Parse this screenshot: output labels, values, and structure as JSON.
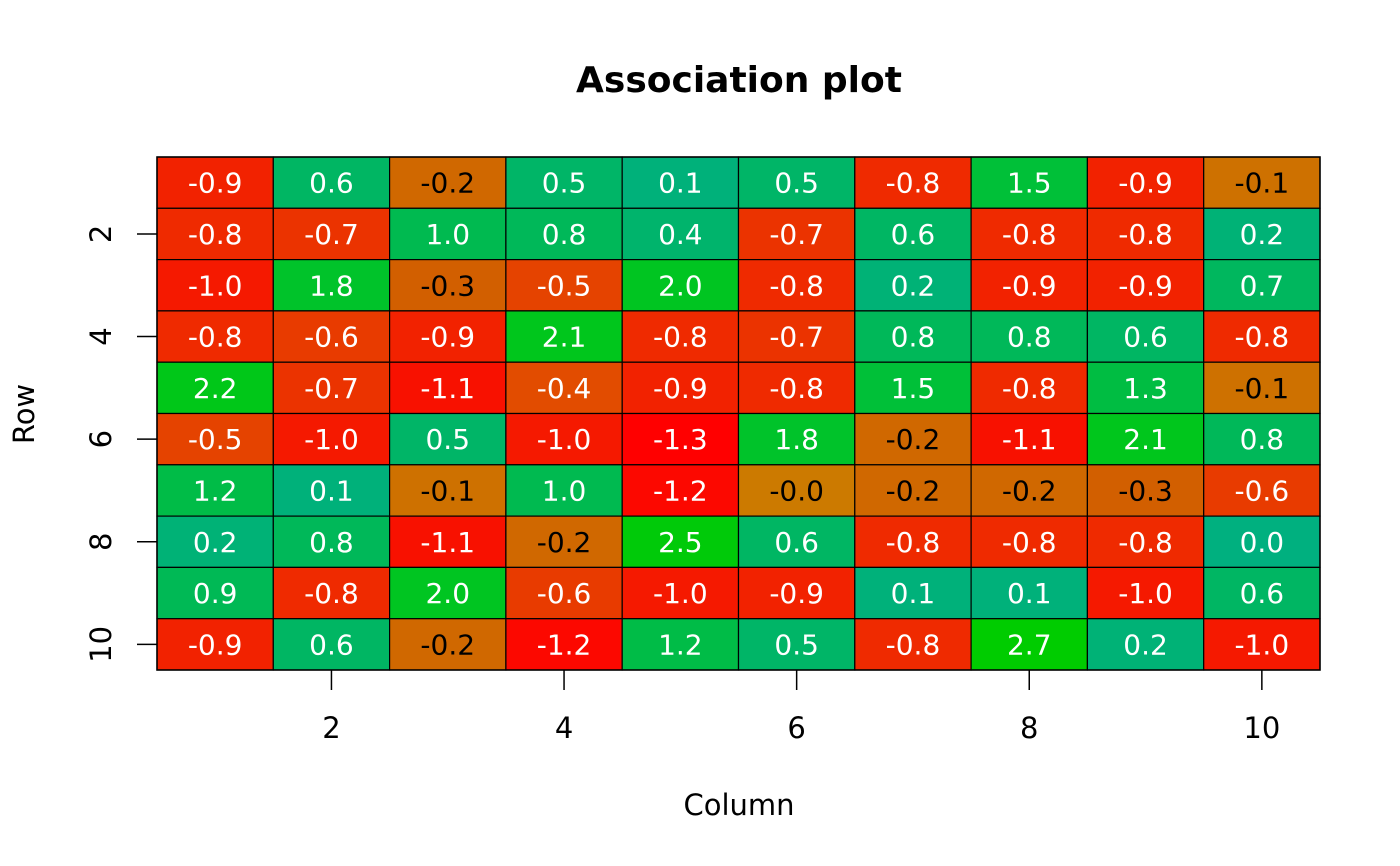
{
  "chart_data": {
    "type": "heatmap",
    "title": "Association plot",
    "xlabel": "Column",
    "ylabel": "Row",
    "x_ticks": [
      "2",
      "4",
      "6",
      "8",
      "10"
    ],
    "y_ticks": [
      "2",
      "4",
      "6",
      "8",
      "10"
    ],
    "x_tick_values": [
      2,
      4,
      6,
      8,
      10
    ],
    "y_tick_values": [
      2,
      4,
      6,
      8,
      10
    ],
    "columns": [
      1,
      2,
      3,
      4,
      5,
      6,
      7,
      8,
      9,
      10
    ],
    "rows": [
      1,
      2,
      3,
      4,
      5,
      6,
      7,
      8,
      9,
      10
    ],
    "values": [
      [
        "-0.9",
        "0.6",
        "-0.2",
        "0.5",
        "0.1",
        "0.5",
        "-0.8",
        "1.5",
        "-0.9",
        "-0.1"
      ],
      [
        "-0.8",
        "-0.7",
        "1.0",
        "0.8",
        "0.4",
        "-0.7",
        "0.6",
        "-0.8",
        "-0.8",
        "0.2"
      ],
      [
        "-1.0",
        "1.8",
        "-0.3",
        "-0.5",
        "2.0",
        "-0.8",
        "0.2",
        "-0.9",
        "-0.9",
        "0.7"
      ],
      [
        "-0.8",
        "-0.6",
        "-0.9",
        "2.1",
        "-0.8",
        "-0.7",
        "0.8",
        "0.8",
        "0.6",
        "-0.8"
      ],
      [
        "2.2",
        "-0.7",
        "-1.1",
        "-0.4",
        "-0.9",
        "-0.8",
        "1.5",
        "-0.8",
        "1.3",
        "-0.1"
      ],
      [
        "-0.5",
        "-1.0",
        "0.5",
        "-1.0",
        "-1.3",
        "1.8",
        "-0.2",
        "-1.1",
        "2.1",
        "0.8"
      ],
      [
        "1.2",
        "0.1",
        "-0.1",
        "1.0",
        "-1.2",
        "-0.0",
        "-0.2",
        "-0.2",
        "-0.3",
        "-0.6"
      ],
      [
        "0.2",
        "0.8",
        "-1.1",
        "-0.2",
        "2.5",
        "0.6",
        "-0.8",
        "-0.8",
        "-0.8",
        "0.0"
      ],
      [
        "0.9",
        "-0.8",
        "2.0",
        "-0.6",
        "-1.0",
        "-0.9",
        "0.1",
        "0.1",
        "-1.0",
        "0.6"
      ],
      [
        "-0.9",
        "0.6",
        "-0.2",
        "-1.2",
        "1.2",
        "0.5",
        "-0.8",
        "2.7",
        "0.2",
        "-1.0"
      ]
    ],
    "colors": {
      "high": "#00cc00",
      "neutral": "#00b07f",
      "low": "#ff0000",
      "mid_negative": "#cc7a00",
      "text_dark": "#000000",
      "text_light": "#ffffff"
    },
    "grid": false,
    "legend": "none"
  }
}
